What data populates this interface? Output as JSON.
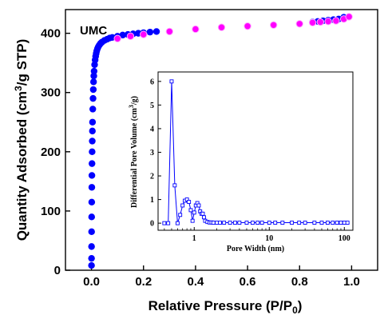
{
  "chart_data": [
    {
      "type": "scatter",
      "title": "",
      "annotation": "UMC",
      "xlabel": "Relative Pressure (P/P",
      "xlabel_subscript": "0",
      "xlabel_close": ")",
      "ylabel": "Quantity Adsorbed (cm",
      "ylabel_superscript": "3",
      "ylabel_tail": "/g STP)",
      "xlim": [
        -0.1,
        1.1
      ],
      "ylim": [
        0,
        440
      ],
      "xticks": [
        0.0,
        0.2,
        0.4,
        0.6,
        0.8,
        1.0
      ],
      "xtick_labels": [
        "0.0",
        "0.2",
        "0.4",
        "0.6",
        "0.8",
        "1.0"
      ],
      "yticks": [
        0,
        100,
        200,
        300,
        400
      ],
      "ytick_labels": [
        "0",
        "100",
        "200",
        "300",
        "400"
      ],
      "grid": false,
      "series": [
        {
          "role": "adsorption",
          "color": "#0000ff",
          "x": [
            0.0001,
            0.0002,
            0.0003,
            0.0005,
            0.0007,
            0.001,
            0.0013,
            0.0016,
            0.002,
            0.0025,
            0.003,
            0.0035,
            0.004,
            0.005,
            0.006,
            0.007,
            0.008,
            0.009,
            0.01,
            0.012,
            0.014,
            0.016,
            0.018,
            0.02,
            0.023,
            0.026,
            0.03,
            0.035,
            0.04,
            0.05,
            0.06,
            0.07,
            0.08,
            0.1,
            0.12,
            0.14,
            0.16,
            0.18,
            0.2,
            0.225,
            0.25,
            0.85,
            0.87,
            0.89,
            0.91,
            0.93,
            0.95,
            0.97
          ],
          "y": [
            8,
            20,
            40,
            65,
            90,
            115,
            140,
            160,
            180,
            200,
            218,
            235,
            250,
            272,
            290,
            305,
            318,
            328,
            336,
            347,
            355,
            361,
            366,
            370,
            374,
            377,
            380,
            383,
            385,
            388,
            390,
            392,
            393,
            395,
            397,
            398,
            399,
            400,
            401,
            402,
            403,
            419,
            420,
            421,
            422,
            423,
            424,
            427
          ]
        },
        {
          "role": "desorption",
          "color": "#ff00ff",
          "x": [
            0.1,
            0.15,
            0.2,
            0.3,
            0.4,
            0.5,
            0.6,
            0.7,
            0.8,
            0.85,
            0.88,
            0.91,
            0.94,
            0.97,
            0.99
          ],
          "y": [
            391,
            395,
            398,
            403,
            407,
            410,
            412,
            414,
            416,
            418,
            419,
            420,
            421,
            424,
            428
          ]
        }
      ]
    },
    {
      "type": "line",
      "title": "",
      "xlabel": "Pore Width (nm)",
      "ylabel": "Differential Pore Volume (cm",
      "ylabel_superscript": "3",
      "ylabel_tail": "/g)",
      "xscale": "log",
      "xlim": [
        0.33,
        130
      ],
      "ylim": [
        -0.3,
        6.4
      ],
      "xticks": [
        1,
        10,
        100
      ],
      "xtick_labels": [
        "1",
        "10",
        "100"
      ],
      "yticks": [
        0,
        1,
        2,
        3,
        4,
        5,
        6
      ],
      "ytick_labels": [
        "0",
        "1",
        "2",
        "3",
        "4",
        "5",
        "6"
      ],
      "grid": false,
      "series": [
        {
          "color": "#0000ff",
          "marker": "open-square",
          "x": [
            0.4,
            0.45,
            0.5,
            0.55,
            0.6,
            0.65,
            0.7,
            0.75,
            0.8,
            0.85,
            0.9,
            0.95,
            1.0,
            1.05,
            1.1,
            1.15,
            1.2,
            1.25,
            1.3,
            1.35,
            1.4,
            1.5,
            1.6,
            1.7,
            1.8,
            2.0,
            2.2,
            2.5,
            3,
            3.5,
            4,
            5,
            6,
            7,
            8,
            10,
            12,
            15,
            20,
            25,
            30,
            40,
            50,
            60,
            70,
            80,
            90,
            100,
            110
          ],
          "y": [
            0,
            0,
            6.0,
            1.6,
            0,
            0.35,
            0.75,
            0.95,
            1.0,
            0.9,
            0.55,
            0.1,
            0.45,
            0.75,
            0.85,
            0.75,
            0.5,
            0.4,
            0.4,
            0.25,
            0.1,
            0.05,
            0.03,
            0.03,
            0.02,
            0.02,
            0.02,
            0.02,
            0.02,
            0.02,
            0.02,
            0.02,
            0.02,
            0.02,
            0.02,
            0.02,
            0.02,
            0.02,
            0.02,
            0.02,
            0.02,
            0.02,
            0.02,
            0.02,
            0.02,
            0.02,
            0.02,
            0.02,
            0.02
          ]
        }
      ]
    }
  ]
}
